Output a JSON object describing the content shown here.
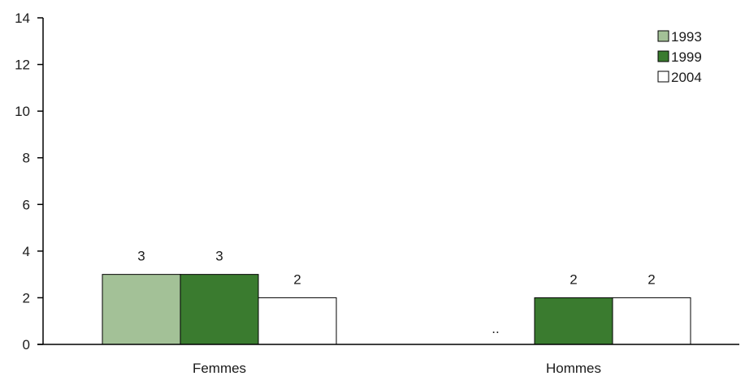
{
  "chart_data": {
    "type": "bar",
    "categories": [
      "Femmes",
      "Hommes"
    ],
    "series": [
      {
        "name": "1993",
        "color": "#a3c197",
        "values": [
          3,
          null
        ],
        "labels": [
          "3",
          ".."
        ]
      },
      {
        "name": "1999",
        "color": "#3a7b2f",
        "values": [
          3,
          2
        ],
        "labels": [
          "3",
          "2"
        ]
      },
      {
        "name": "2004",
        "color": "#ffffff",
        "values": [
          2,
          2
        ],
        "labels": [
          "2",
          "2"
        ]
      }
    ],
    "ylim": [
      0,
      14
    ],
    "yticks": [
      "0",
      "2",
      "4",
      "6",
      "8",
      "10",
      "12",
      "14"
    ],
    "title": "",
    "xlabel": "",
    "ylabel": "",
    "grid": false,
    "legend_position": "top-right"
  }
}
